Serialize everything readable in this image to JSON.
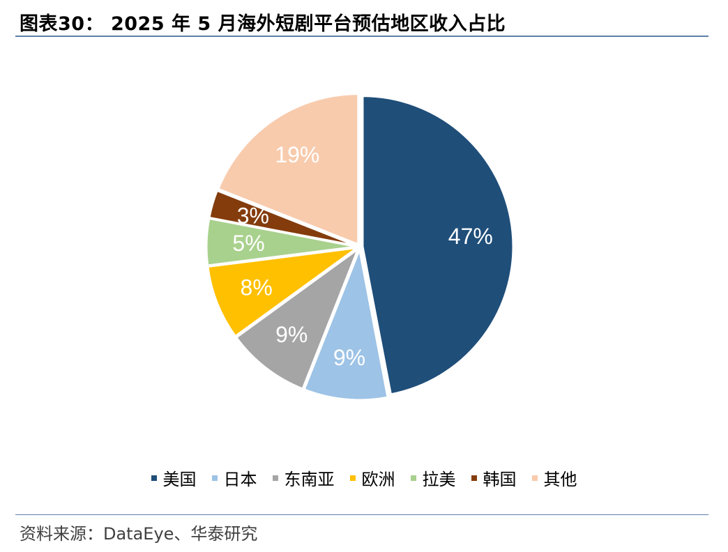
{
  "header": {
    "title": "图表30： 2025 年 5 月海外短剧平台预估地区收入占比"
  },
  "footer": {
    "source": "资料来源：DataEye、华泰研究"
  },
  "chart_data": {
    "type": "pie",
    "title": "2025 年 5 月海外短剧平台预估地区收入占比",
    "legend_position": "bottom",
    "slices": [
      {
        "label": "美国",
        "value": 47,
        "display": "47%",
        "color": "#1f4e79",
        "text_color": "#ffffff"
      },
      {
        "label": "日本",
        "value": 9,
        "display": "9%",
        "color": "#9dc3e6",
        "text_color": "#ffffff"
      },
      {
        "label": "东南亚",
        "value": 9,
        "display": "9%",
        "color": "#a5a5a5",
        "text_color": "#ffffff"
      },
      {
        "label": "欧洲",
        "value": 8,
        "display": "8%",
        "color": "#ffc000",
        "text_color": "#ffffff"
      },
      {
        "label": "拉美",
        "value": 5,
        "display": "5%",
        "color": "#a9d18e",
        "text_color": "#ffffff"
      },
      {
        "label": "韩国",
        "value": 3,
        "display": "3%",
        "color": "#843c0c",
        "text_color": "#ffffff"
      },
      {
        "label": "其他",
        "value": 19,
        "display": "19%",
        "color": "#f8cbad",
        "text_color": "#ffffff"
      }
    ]
  }
}
